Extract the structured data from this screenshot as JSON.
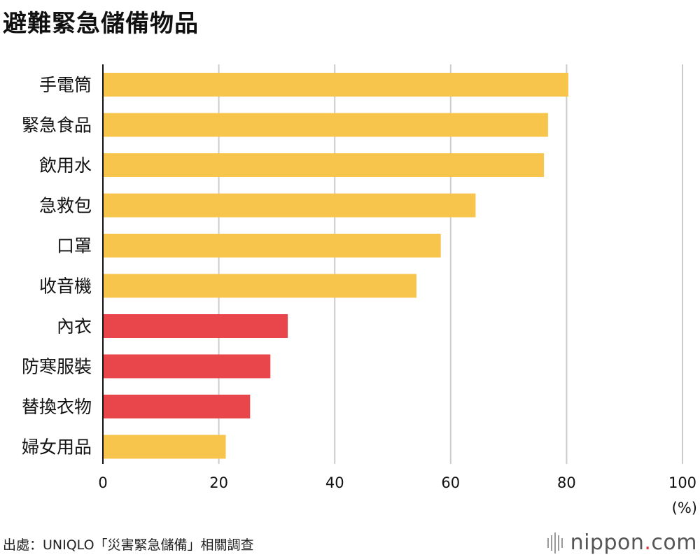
{
  "title": "避難緊急儲備物品",
  "source": "出處：UNIQLO「災害緊急儲備」相關調查",
  "logo": {
    "name": "nippon",
    "dot": ".",
    "suffix": "com"
  },
  "chart_data": {
    "type": "bar",
    "orientation": "horizontal",
    "title": "避難緊急儲備物品",
    "xlabel": "(%)",
    "xlim": [
      0,
      100
    ],
    "xticks": [
      0,
      20,
      40,
      60,
      80,
      100
    ],
    "grid": true,
    "colors": {
      "default": "#F8C54C",
      "highlight": "#E8464A",
      "grid": "#cccccc",
      "axis": "#111111"
    },
    "categories": [
      "手電筒",
      "緊急食品",
      "飲用水",
      "急救包",
      "口罩",
      "收音機",
      "內衣",
      "防寒服裝",
      "替換衣物",
      "婦女用品"
    ],
    "values": [
      80.3,
      76.8,
      76.1,
      64.3,
      58.3,
      54.1,
      31.9,
      28.9,
      25.4,
      21.2
    ],
    "highlight": [
      false,
      false,
      false,
      false,
      false,
      false,
      true,
      true,
      true,
      false
    ]
  }
}
